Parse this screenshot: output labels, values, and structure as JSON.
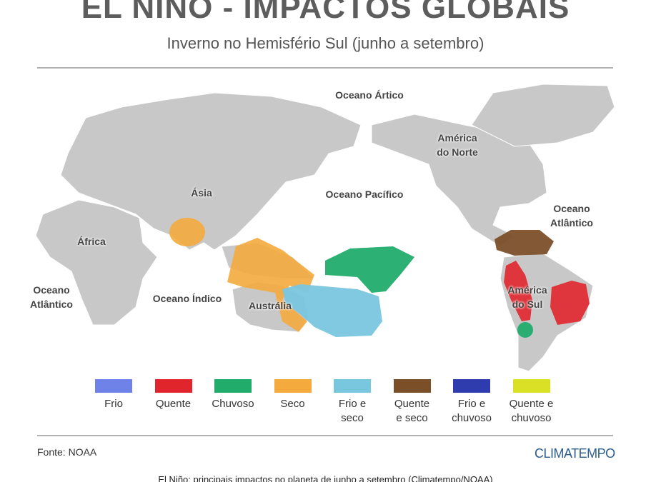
{
  "header": {
    "title": "EL NIÑO - IMPACTOS GLOBAIS",
    "subtitle": "Inverno no Hemisfério Sul (junho a setembro)"
  },
  "map": {
    "labels": [
      {
        "text": "Oceano Ártico"
      },
      {
        "text": "América\ndo Norte"
      },
      {
        "text": "Oceano Pacífico"
      },
      {
        "text": "Ásia"
      },
      {
        "text": "Oceano Atlântico"
      },
      {
        "text": "África"
      },
      {
        "text": "Oceano\nAtlântico"
      },
      {
        "text": "Oceano Índico"
      },
      {
        "text": "Austrália"
      },
      {
        "text": "América\ndo Sul"
      }
    ]
  },
  "legend": {
    "items": [
      {
        "label": "Frio",
        "color": "#6f82e8"
      },
      {
        "label": "Quente",
        "color": "#e0262c"
      },
      {
        "label": "Chuvoso",
        "color": "#22ac6c"
      },
      {
        "label": "Seco",
        "color": "#f4aa3d"
      },
      {
        "label": "Frio e\nseco",
        "color": "#79c6df"
      },
      {
        "label": "Quente\ne seco",
        "color": "#7b5029"
      },
      {
        "label": "Frio e\nchuvoso",
        "color": "#2f3cae"
      },
      {
        "label": "Quente e\nchuvoso",
        "color": "#d9e026"
      }
    ]
  },
  "footer": {
    "source": "Fonte: NOAA",
    "brand": "CLIMATEMPO",
    "caption": "El Niño: principais impactos no planeta de junho a setembro (Climatempo/NOAA)"
  }
}
